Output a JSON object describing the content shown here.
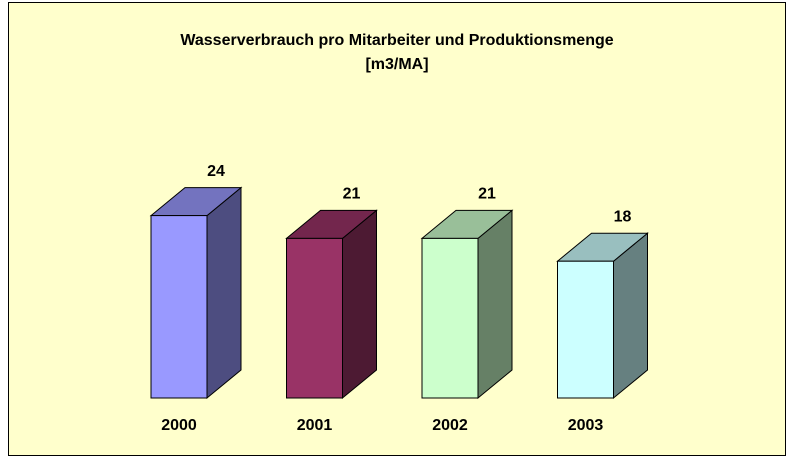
{
  "chart_data": {
    "type": "bar3d",
    "title": "Wasserverbrauch pro Mitarbeiter und Produktionsmenge",
    "subtitle": "[m3/MA]",
    "categories": [
      "2000",
      "2001",
      "2002",
      "2003"
    ],
    "values": [
      24,
      21,
      21,
      18
    ],
    "colors": [
      "#9999ff",
      "#993366",
      "#ccffcc",
      "#ccffff"
    ]
  }
}
